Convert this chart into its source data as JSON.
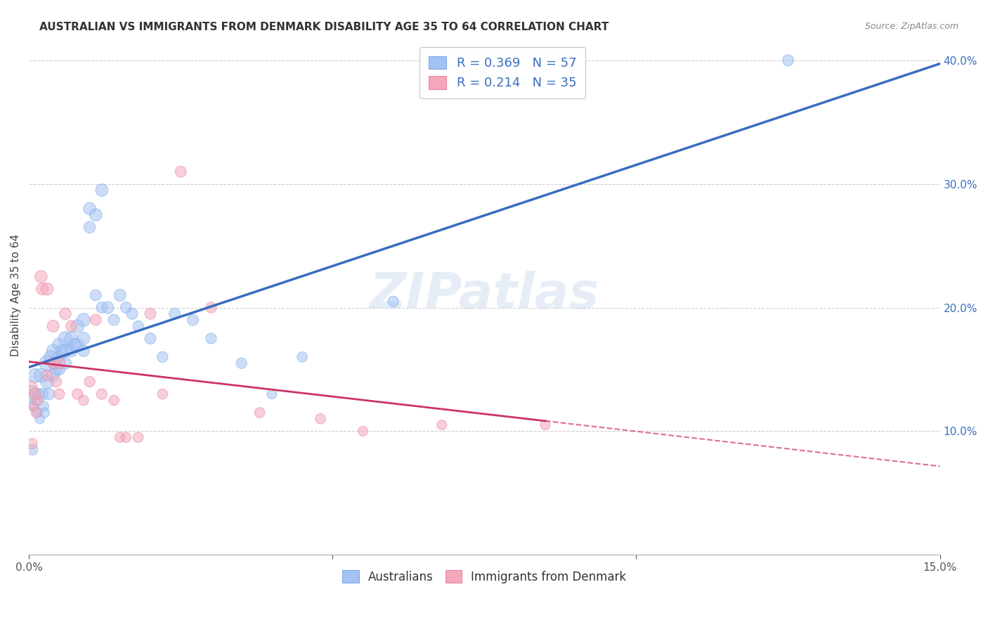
{
  "title": "AUSTRALIAN VS IMMIGRANTS FROM DENMARK DISABILITY AGE 35 TO 64 CORRELATION CHART",
  "source": "Source: ZipAtlas.com",
  "ylabel": "Disability Age 35 to 64",
  "xlim": [
    0.0,
    0.15
  ],
  "ylim": [
    0.0,
    0.42
  ],
  "y_ticks_right": [
    0.0,
    0.1,
    0.2,
    0.3,
    0.4
  ],
  "y_tick_labels_right": [
    "",
    "10.0%",
    "20.0%",
    "30.0%",
    "40.0%"
  ],
  "blue_color": "#a4c2f4",
  "pink_color": "#f4a7b9",
  "blue_line_color": "#3a6dbf",
  "pink_line_color": "#cc3366",
  "legend_blue_label": "R = 0.369   N = 57",
  "legend_pink_label": "R = 0.214   N = 35",
  "legend_bottom_blue": "Australians",
  "legend_bottom_pink": "Immigrants from Denmark",
  "background_color": "#ffffff",
  "grid_color": "#c8c8c8",
  "australians_x": [
    0.0004,
    0.0006,
    0.0008,
    0.001,
    0.0012,
    0.0014,
    0.0016,
    0.0018,
    0.002,
    0.0022,
    0.0024,
    0.0026,
    0.003,
    0.003,
    0.0033,
    0.0036,
    0.004,
    0.004,
    0.0042,
    0.0045,
    0.005,
    0.005,
    0.005,
    0.0055,
    0.006,
    0.006,
    0.006,
    0.007,
    0.007,
    0.0075,
    0.008,
    0.008,
    0.009,
    0.009,
    0.009,
    0.01,
    0.01,
    0.011,
    0.011,
    0.012,
    0.012,
    0.013,
    0.014,
    0.015,
    0.016,
    0.017,
    0.018,
    0.02,
    0.022,
    0.024,
    0.027,
    0.03,
    0.035,
    0.04,
    0.045,
    0.06,
    0.125
  ],
  "australians_y": [
    0.13,
    0.085,
    0.12,
    0.145,
    0.125,
    0.115,
    0.13,
    0.11,
    0.145,
    0.13,
    0.12,
    0.115,
    0.155,
    0.14,
    0.13,
    0.16,
    0.165,
    0.145,
    0.155,
    0.15,
    0.17,
    0.16,
    0.15,
    0.165,
    0.175,
    0.165,
    0.155,
    0.175,
    0.165,
    0.17,
    0.185,
    0.17,
    0.19,
    0.175,
    0.165,
    0.28,
    0.265,
    0.275,
    0.21,
    0.295,
    0.2,
    0.2,
    0.19,
    0.21,
    0.2,
    0.195,
    0.185,
    0.175,
    0.16,
    0.195,
    0.19,
    0.175,
    0.155,
    0.13,
    0.16,
    0.205,
    0.4
  ],
  "australians_size": [
    300,
    120,
    100,
    200,
    120,
    100,
    120,
    100,
    200,
    150,
    120,
    100,
    250,
    180,
    140,
    180,
    180,
    150,
    160,
    150,
    180,
    160,
    140,
    160,
    200,
    170,
    150,
    180,
    160,
    160,
    180,
    160,
    180,
    160,
    140,
    160,
    140,
    160,
    130,
    160,
    130,
    150,
    130,
    150,
    130,
    130,
    120,
    130,
    120,
    130,
    130,
    120,
    120,
    100,
    110,
    120,
    130
  ],
  "denmark_x": [
    0.0003,
    0.0005,
    0.0008,
    0.001,
    0.0012,
    0.0015,
    0.002,
    0.0022,
    0.003,
    0.003,
    0.004,
    0.004,
    0.0045,
    0.005,
    0.005,
    0.006,
    0.007,
    0.008,
    0.009,
    0.01,
    0.011,
    0.012,
    0.014,
    0.015,
    0.016,
    0.018,
    0.02,
    0.022,
    0.025,
    0.03,
    0.038,
    0.048,
    0.055,
    0.068,
    0.085
  ],
  "denmark_y": [
    0.135,
    0.09,
    0.12,
    0.13,
    0.115,
    0.125,
    0.225,
    0.215,
    0.215,
    0.145,
    0.185,
    0.155,
    0.14,
    0.155,
    0.13,
    0.195,
    0.185,
    0.13,
    0.125,
    0.14,
    0.19,
    0.13,
    0.125,
    0.095,
    0.095,
    0.095,
    0.195,
    0.13,
    0.31,
    0.2,
    0.115,
    0.11,
    0.1,
    0.105,
    0.105
  ],
  "denmark_size": [
    200,
    120,
    100,
    140,
    110,
    110,
    160,
    150,
    160,
    130,
    150,
    130,
    120,
    140,
    120,
    140,
    130,
    120,
    110,
    120,
    130,
    120,
    110,
    110,
    110,
    110,
    130,
    110,
    130,
    120,
    110,
    110,
    100,
    100,
    100
  ]
}
